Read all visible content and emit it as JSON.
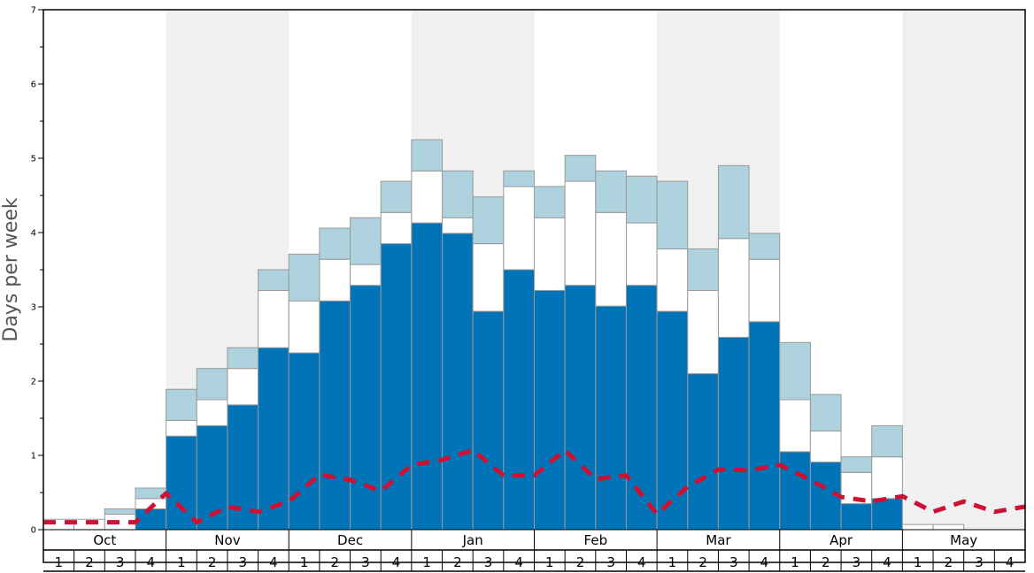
{
  "chart_data": {
    "type": "bar",
    "ylabel": "Days per week",
    "ylim": [
      0,
      7
    ],
    "yticks": [
      "0",
      "1",
      "2",
      "3",
      "4",
      "5",
      "6",
      "7"
    ],
    "months": [
      "Oct",
      "Nov",
      "Dec",
      "Jan",
      "Feb",
      "Mar",
      "Apr",
      "May"
    ],
    "weeks": [
      "1",
      "2",
      "3",
      "4"
    ],
    "stacked": true,
    "colors": {
      "dark": "#0074b7",
      "middle": "#ffffff",
      "top": "#aed2de",
      "line": "#cc1133",
      "shade": "#f0f0f0"
    },
    "series": [
      {
        "key": "dark",
        "values": [
          0,
          0,
          0,
          0.28,
          1.26,
          1.4,
          1.68,
          2.45,
          2.38,
          3.08,
          3.29,
          3.85,
          4.13,
          3.99,
          2.94,
          3.5,
          3.22,
          3.29,
          3.01,
          3.29,
          2.94,
          2.1,
          2.59,
          2.8,
          1.05,
          0.91,
          0.35,
          0.42,
          0,
          0,
          0,
          0
        ]
      },
      {
        "key": "middle",
        "values": [
          0.14,
          0.14,
          0.21,
          0.14,
          0.21,
          0.35,
          0.49,
          0.77,
          0.7,
          0.56,
          0.28,
          0.42,
          0.7,
          0.21,
          0.91,
          1.12,
          0.98,
          1.4,
          1.26,
          0.84,
          0.84,
          1.12,
          1.33,
          0.84,
          0.7,
          0.42,
          0.42,
          0.56,
          0.07,
          0.07,
          0,
          0
        ]
      },
      {
        "key": "top",
        "values": [
          0,
          0,
          0.07,
          0.14,
          0.42,
          0.42,
          0.28,
          0.28,
          0.63,
          0.42,
          0.63,
          0.42,
          0.42,
          0.63,
          0.63,
          0.21,
          0.42,
          0.35,
          0.56,
          0.63,
          0.91,
          0.56,
          0.98,
          0.35,
          0.77,
          0.49,
          0.21,
          0.42,
          0,
          0,
          0,
          0
        ]
      }
    ],
    "line": {
      "style": "dashed",
      "values": [
        0.1,
        0.1,
        0.1,
        0.1,
        0.49,
        0.1,
        0.31,
        0.24,
        0.38,
        0.74,
        0.67,
        0.52,
        0.87,
        0.94,
        1.07,
        0.73,
        0.73,
        1.07,
        0.68,
        0.73,
        0.21,
        0.58,
        0.81,
        0.8,
        0.87,
        0.67,
        0.44,
        0.38,
        0.45,
        0.24,
        0.38,
        0.24,
        0.31
      ]
    },
    "shaded_months": [
      "Nov",
      "Jan",
      "Mar",
      "May"
    ],
    "grid": false
  }
}
